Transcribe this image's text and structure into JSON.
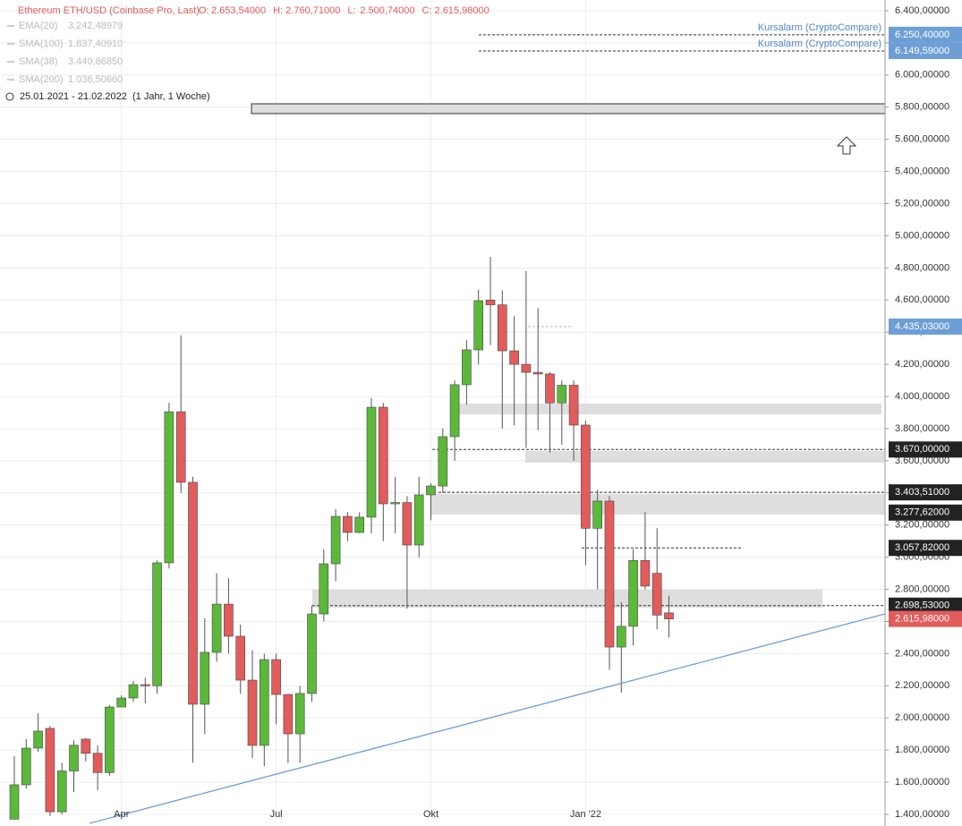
{
  "chart_data": {
    "type": "candlestick",
    "title": "Ethereum ETH/USD (Coinbase Pro, Last)",
    "ohlc": [
      {
        "key": "O:",
        "value": 2653.54,
        "label": "2.653,54000"
      },
      {
        "key": "H:",
        "value": 2760.71,
        "label": "2.760,71000"
      },
      {
        "key": "L:",
        "value": 2500.74,
        "label": "2.500,74000"
      },
      {
        "key": "C:",
        "value": 2615.98,
        "label": "2.615,98000"
      }
    ],
    "indicators": [
      {
        "name": "EMA(20)",
        "label": "3.242,48979"
      },
      {
        "name": "SMA(100)",
        "label": "1.837,40910"
      },
      {
        "name": "SMA(38)",
        "label": "3.440,86850"
      },
      {
        "name": "SMA(200)",
        "label": "1.036,50660"
      }
    ],
    "date_range": "25.01.2021 - 21.02.2022",
    "period": "(1 Jahr, 1 Woche)",
    "categories": [
      null,
      null,
      null,
      null,
      null,
      null,
      null,
      null,
      null,
      "Apr",
      null,
      null,
      null,
      null,
      null,
      null,
      null,
      null,
      null,
      null,
      null,
      null,
      "Jul",
      null,
      null,
      null,
      null,
      null,
      null,
      null,
      null,
      null,
      null,
      null,
      null,
      "Okt",
      null,
      null,
      null,
      null,
      null,
      null,
      null,
      null,
      null,
      null,
      null,
      null,
      "Jan '22",
      null,
      null,
      null,
      null,
      null,
      null,
      null
    ],
    "open": [
      1370,
      1584,
      1812,
      1935,
      1416,
      1670,
      1868,
      1780,
      1660,
      2068,
      2124,
      2207,
      2200,
      2965,
      3905,
      3466,
      2085,
      2408,
      2708,
      2508,
      2235,
      1829,
      2363,
      2146,
      1901,
      2152,
      2647,
      2959,
      3254,
      3154,
      3249,
      3933,
      3332,
      3340,
      3076,
      3388,
      3443,
      3750,
      4073,
      4290,
      4600,
      4570,
      4284,
      4200,
      4150,
      4140,
      3960,
      4070,
      3822,
      3180,
      3349,
      2441,
      2570,
      2980,
      2900,
      2653.54
    ],
    "high": [
      1762,
      1868,
      2029,
      1950,
      1720,
      1860,
      1875,
      1830,
      2080,
      2140,
      2230,
      2250,
      2980,
      3960,
      4380,
      3500,
      2620,
      2900,
      2870,
      2580,
      2420,
      2400,
      2400,
      2150,
      2200,
      2700,
      3050,
      3300,
      3280,
      3280,
      3990,
      3960,
      3500,
      3380,
      3500,
      3460,
      3800,
      4100,
      4350,
      4665,
      4868,
      4660,
      4500,
      4780,
      4550,
      4150,
      4100,
      4100,
      3850,
      3420,
      3380,
      2720,
      3050,
      3280,
      3180,
      2760.71
    ],
    "low": [
      1370,
      1560,
      1790,
      1390,
      1400,
      1540,
      1730,
      1550,
      1640,
      2080,
      2100,
      2090,
      2150,
      2930,
      3400,
      1723,
      1900,
      2350,
      2400,
      2150,
      1750,
      1700,
      1960,
      1720,
      1720,
      2100,
      2600,
      2850,
      3100,
      3150,
      3150,
      3100,
      3150,
      2680,
      3000,
      3230,
      3400,
      3600,
      3950,
      4200,
      4320,
      3800,
      3820,
      3680,
      3790,
      3650,
      3700,
      3600,
      2950,
      2800,
      2300,
      2157,
      2450,
      2800,
      2550,
      2500.74
    ],
    "close": [
      1584,
      1812,
      1918,
      1416,
      1670,
      1830,
      1780,
      1660,
      2068,
      2124,
      2207,
      2200,
      2965,
      3905,
      3466,
      2085,
      2408,
      2708,
      2508,
      2235,
      1829,
      2363,
      2146,
      1901,
      2152,
      2647,
      2959,
      3254,
      3154,
      3249,
      3933,
      3332,
      3340,
      3076,
      3388,
      3443,
      3750,
      4073,
      4290,
      4596,
      4570,
      4284,
      4200,
      4150,
      4140,
      3960,
      4070,
      3822,
      3180,
      3349,
      2441,
      2570,
      2980,
      2820,
      2640,
      2615.98
    ],
    "up_color": "#5cb83a",
    "down_color": "#e25c5c",
    "ylim": [
      1400,
      6400
    ],
    "yticks": [
      {
        "value": 1400,
        "label": "1.400,00000"
      },
      {
        "value": 1600,
        "label": "1.600,00000"
      },
      {
        "value": 1800,
        "label": "1.800,00000"
      },
      {
        "value": 2000,
        "label": "2.000,00000"
      },
      {
        "value": 2200,
        "label": "2.200,00000"
      },
      {
        "value": 2400,
        "label": "2.400,00000"
      },
      {
        "value": 2600,
        "label": "2.600,00000"
      },
      {
        "value": 2800,
        "label": "2.800,00000"
      },
      {
        "value": 3000,
        "label": "3.000,00000"
      },
      {
        "value": 3200,
        "label": "3.200,00000"
      },
      {
        "value": 3400,
        "label": "3.400,00000"
      },
      {
        "value": 3600,
        "label": "3.600,00000"
      },
      {
        "value": 3800,
        "label": "3.800,00000"
      },
      {
        "value": 4000,
        "label": "4.000,00000"
      },
      {
        "value": 4200,
        "label": "4.200,00000"
      },
      {
        "value": 4400,
        "label": "4.400,00000"
      },
      {
        "value": 4600,
        "label": "4.600,00000"
      },
      {
        "value": 4800,
        "label": "4.800,00000"
      },
      {
        "value": 5000,
        "label": "5.000,00000"
      },
      {
        "value": 5200,
        "label": "5.200,00000"
      },
      {
        "value": 5400,
        "label": "5.400,00000"
      },
      {
        "value": 5600,
        "label": "5.600,00000"
      },
      {
        "value": 5800,
        "label": "5.800,00000"
      },
      {
        "value": 6000,
        "label": "6.000,00000"
      },
      {
        "value": 6200,
        "label": "6.200,00000"
      },
      {
        "value": 6400,
        "label": "6.400,00000"
      }
    ],
    "grid": true,
    "price_labels": [
      {
        "value": 6250.4,
        "label": "6.250,40000",
        "color": "#6d9fd6",
        "note": "Kursalarm (CryptoCompare)"
      },
      {
        "value": 6149.59,
        "label": "6.149,59000",
        "color": "#6d9fd6",
        "note": "Kursalarm (CryptoCompare)"
      },
      {
        "value": 4435.03,
        "label": "4.435,03000",
        "color": "#6d9fd6"
      },
      {
        "value": 3670,
        "label": "3.670,00000",
        "color": "#222222"
      },
      {
        "value": 3403.51,
        "label": "3.403,51000",
        "color": "#222222"
      },
      {
        "value": 3277.62,
        "label": "3.277,62000",
        "color": "#222222"
      },
      {
        "value": 3057.82,
        "label": "3.057,82000",
        "color": "#222222"
      },
      {
        "value": 2698.53,
        "label": "2.698,53000",
        "color": "#222222"
      },
      {
        "value": 2615.98,
        "label": "2.615,98000",
        "color": "#e25c5c"
      }
    ],
    "zones": [
      {
        "low": 5760,
        "high": 5821
      },
      {
        "low": 3889,
        "high": 3956
      },
      {
        "low": 3588,
        "high": 3661
      },
      {
        "low": 3265,
        "high": 3393
      },
      {
        "low": 2686,
        "high": 2798
      }
    ]
  }
}
